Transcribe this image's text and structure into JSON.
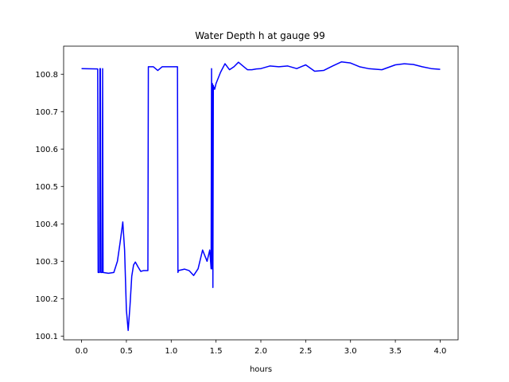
{
  "chart_data": {
    "type": "line",
    "title": "Water Depth h at gauge 99",
    "xlabel": "hours",
    "ylabel": "",
    "xlim": [
      -0.2,
      4.2
    ],
    "ylim": [
      100.09,
      100.875
    ],
    "xticks": [
      0.0,
      0.5,
      1.0,
      1.5,
      2.0,
      2.5,
      3.0,
      3.5,
      4.0
    ],
    "xtick_labels": [
      "0.0",
      "0.5",
      "1.0",
      "1.5",
      "2.0",
      "2.5",
      "3.0",
      "3.5",
      "4.0"
    ],
    "yticks": [
      100.1,
      100.2,
      100.3,
      100.4,
      100.5,
      100.6,
      100.7,
      100.8
    ],
    "ytick_labels": [
      "100.1",
      "100.2",
      "100.3",
      "100.4",
      "100.5",
      "100.6",
      "100.7",
      "100.8"
    ],
    "grid": false,
    "series": [
      {
        "color": "#0000ff",
        "x": [
          0.0,
          0.18,
          0.185,
          0.2,
          0.205,
          0.21,
          0.215,
          0.23,
          0.235,
          0.24,
          0.3,
          0.36,
          0.4,
          0.43,
          0.46,
          0.48,
          0.5,
          0.52,
          0.54,
          0.56,
          0.58,
          0.6,
          0.63,
          0.66,
          0.69,
          0.72,
          0.74,
          0.745,
          0.75,
          0.8,
          0.85,
          0.9,
          0.95,
          1.0,
          1.07,
          1.075,
          1.08,
          1.15,
          1.2,
          1.25,
          1.3,
          1.35,
          1.4,
          1.43,
          1.445,
          1.45,
          1.455,
          1.46,
          1.465,
          1.47,
          1.475,
          1.48,
          1.485,
          1.49,
          1.5,
          1.55,
          1.6,
          1.65,
          1.7,
          1.75,
          1.8,
          1.85,
          1.9,
          1.95,
          2.0,
          2.1,
          2.2,
          2.3,
          2.4,
          2.5,
          2.6,
          2.7,
          2.8,
          2.9,
          3.0,
          3.1,
          3.2,
          3.35,
          3.5,
          3.6,
          3.7,
          3.8,
          3.9,
          4.0
        ],
        "y": [
          100.815,
          100.814,
          100.27,
          100.27,
          100.815,
          100.815,
          100.27,
          100.27,
          100.815,
          100.27,
          100.268,
          100.27,
          100.3,
          100.35,
          100.405,
          100.33,
          100.17,
          100.115,
          100.18,
          100.26,
          100.29,
          100.298,
          100.285,
          100.273,
          100.275,
          100.275,
          100.275,
          100.82,
          100.82,
          100.82,
          100.81,
          100.82,
          100.82,
          100.82,
          100.82,
          100.27,
          100.275,
          100.279,
          100.275,
          100.262,
          100.28,
          100.33,
          100.3,
          100.33,
          100.28,
          100.815,
          100.28,
          100.775,
          100.23,
          100.77,
          100.76,
          100.765,
          100.76,
          100.765,
          100.775,
          100.805,
          100.828,
          100.812,
          100.82,
          100.832,
          100.822,
          100.812,
          100.812,
          100.814,
          100.815,
          100.822,
          100.82,
          100.822,
          100.815,
          100.825,
          100.808,
          100.81,
          100.822,
          100.833,
          100.83,
          100.82,
          100.815,
          100.812,
          100.825,
          100.828,
          100.826,
          100.82,
          100.815,
          100.813
        ]
      }
    ]
  }
}
